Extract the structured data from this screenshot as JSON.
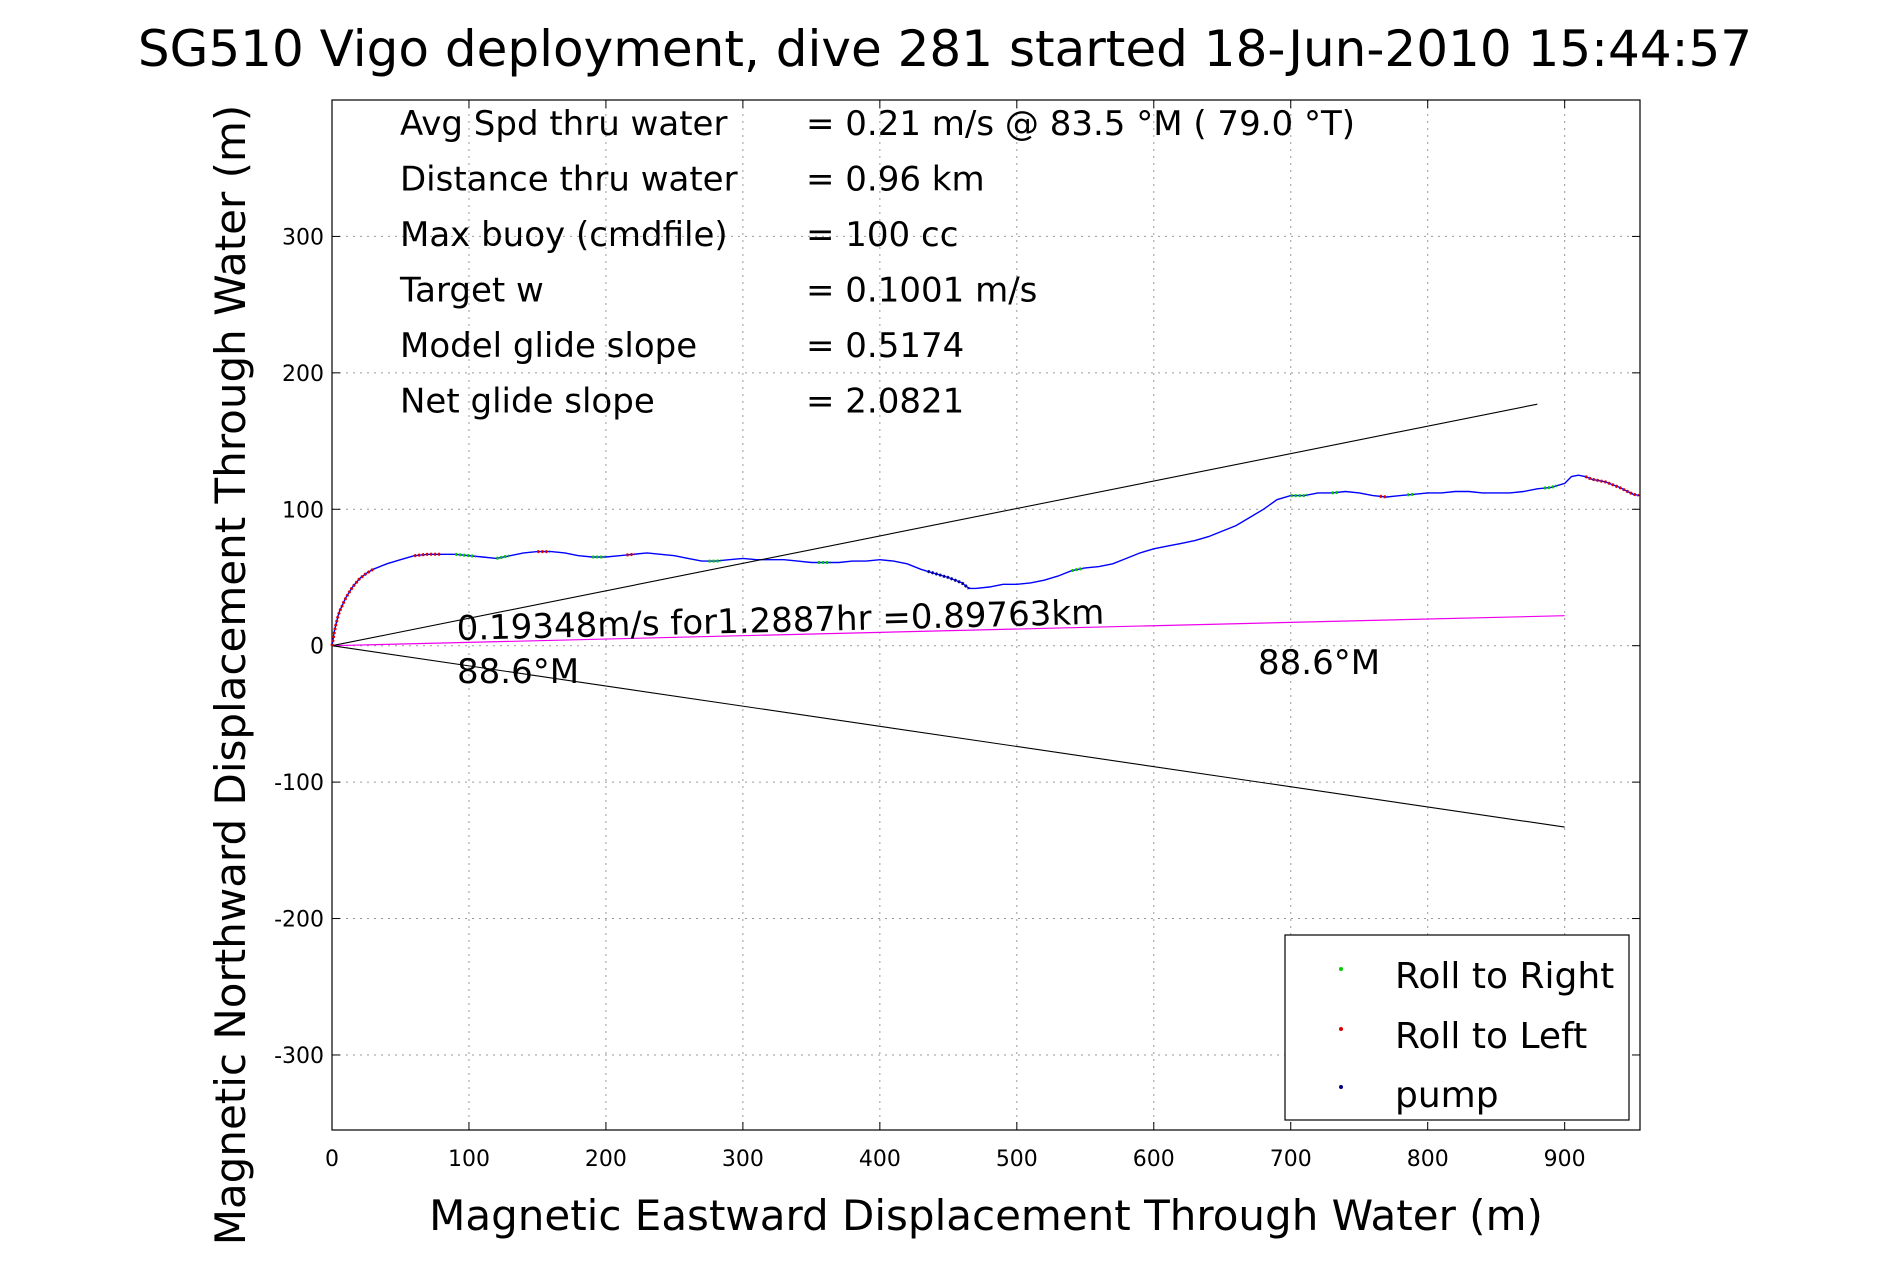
{
  "chart_data": {
    "type": "line",
    "title": "SG510 Vigo deployment, dive 281 started 18-Jun-2010 15:44:57",
    "xlabel": "Magnetic Eastward Displacement Through Water (m)",
    "ylabel": "Magnetic Northward Displacement Through Water (m)",
    "xlim": [
      0,
      955
    ],
    "ylim": [
      -355,
      400
    ],
    "x_ticks": [
      0,
      100,
      200,
      300,
      400,
      500,
      600,
      700,
      800,
      900
    ],
    "y_ticks": [
      -300,
      -200,
      -100,
      0,
      100,
      200,
      300
    ],
    "grid": true,
    "info": [
      {
        "label": "Avg Spd thru water",
        "value": "=  0.21 m/s @  83.5 °M ( 79.0 °T)"
      },
      {
        "label": "Distance thru water",
        "value": "=  0.96 km"
      },
      {
        "label": "Max buoy (cmdfile)",
        "value": "= 100 cc"
      },
      {
        "label": "Target w",
        "value": "= 0.1001 m/s"
      },
      {
        "label": "Model glide slope",
        "value": "= 0.5174"
      },
      {
        "label": "Net glide slope",
        "value": "= 2.0821"
      }
    ],
    "annotations": {
      "current_text": "0.19348m/s for1.2887hr =0.89763km",
      "heading_start": "88.6°M",
      "heading_end": "88.6°M"
    },
    "legend": {
      "position": "bottom-right",
      "entries": [
        {
          "label": "Roll to Right",
          "color": "#00cc00"
        },
        {
          "label": "Roll to Left",
          "color": "#dd0000"
        },
        {
          "label": "pump",
          "color": "#000000"
        }
      ]
    },
    "colors": {
      "track": "#0000ff",
      "current": "#ee00ee",
      "glide_cone": "#000000",
      "roll_right": "#00cc00",
      "roll_left": "#dd0000",
      "pump": "#000080"
    },
    "series": [
      {
        "name": "track",
        "x": [
          0,
          2,
          5,
          10,
          15,
          20,
          25,
          30,
          40,
          50,
          60,
          70,
          80,
          90,
          100,
          110,
          120,
          130,
          140,
          150,
          160,
          170,
          180,
          190,
          200,
          210,
          220,
          230,
          240,
          250,
          260,
          270,
          280,
          290,
          300,
          310,
          320,
          330,
          340,
          350,
          360,
          370,
          380,
          390,
          400,
          410,
          420,
          430,
          440,
          450,
          460,
          465,
          470,
          480,
          490,
          500,
          510,
          520,
          530,
          540,
          550,
          560,
          570,
          580,
          590,
          600,
          610,
          620,
          630,
          640,
          650,
          660,
          670,
          680,
          690,
          700,
          710,
          720,
          730,
          740,
          750,
          760,
          770,
          780,
          790,
          800,
          810,
          820,
          830,
          840,
          850,
          860,
          870,
          880,
          890,
          900,
          905,
          910,
          915,
          920,
          930,
          940,
          950,
          955
        ],
        "y": [
          0,
          12,
          24,
          35,
          43,
          49,
          53,
          56,
          60,
          63,
          66,
          67,
          67,
          67,
          66,
          65,
          64,
          66,
          68,
          69,
          69,
          68,
          66,
          65,
          65,
          66,
          67,
          68,
          67,
          66,
          64,
          62,
          62,
          63,
          64,
          63,
          63,
          63,
          62,
          61,
          61,
          61,
          62,
          62,
          63,
          62,
          60,
          56,
          53,
          50,
          46,
          42,
          42,
          43,
          45,
          45,
          46,
          48,
          51,
          55,
          57,
          58,
          60,
          64,
          68,
          71,
          73,
          75,
          77,
          80,
          84,
          88,
          94,
          100,
          107,
          110,
          110,
          112,
          112,
          113,
          112,
          110,
          109,
          110,
          111,
          112,
          112,
          113,
          113,
          112,
          112,
          112,
          113,
          115,
          116,
          119,
          124,
          125,
          124,
          122,
          120,
          116,
          111,
          110
        ]
      },
      {
        "name": "current",
        "x": [
          0,
          900
        ],
        "y": [
          0,
          22
        ]
      },
      {
        "name": "glide_upper",
        "x": [
          0,
          880
        ],
        "y": [
          0,
          177
        ]
      },
      {
        "name": "glide_lower",
        "x": [
          0,
          900
        ],
        "y": [
          0,
          -133
        ]
      }
    ],
    "markers": [
      {
        "type": "roll_left",
        "x_range": [
          0,
          30
        ]
      },
      {
        "type": "roll_left",
        "x_range": [
          60,
          80
        ]
      },
      {
        "type": "roll_right",
        "x_range": [
          90,
          105
        ]
      },
      {
        "type": "roll_right",
        "x_range": [
          120,
          130
        ]
      },
      {
        "type": "roll_left",
        "x_range": [
          150,
          160
        ]
      },
      {
        "type": "roll_right",
        "x_range": [
          190,
          200
        ]
      },
      {
        "type": "roll_left",
        "x_range": [
          215,
          222
        ]
      },
      {
        "type": "roll_right",
        "x_range": [
          275,
          285
        ]
      },
      {
        "type": "roll_right",
        "x_range": [
          355,
          365
        ]
      },
      {
        "type": "pump",
        "x_range": [
          435,
          465
        ]
      },
      {
        "type": "roll_right",
        "x_range": [
          540,
          550
        ]
      },
      {
        "type": "roll_right",
        "x_range": [
          700,
          712
        ]
      },
      {
        "type": "roll_right",
        "x_range": [
          730,
          735
        ]
      },
      {
        "type": "roll_left",
        "x_range": [
          765,
          772
        ]
      },
      {
        "type": "roll_right",
        "x_range": [
          785,
          792
        ]
      },
      {
        "type": "roll_right",
        "x_range": [
          885,
          895
        ]
      },
      {
        "type": "roll_left",
        "x_range": [
          915,
          955
        ]
      }
    ]
  }
}
